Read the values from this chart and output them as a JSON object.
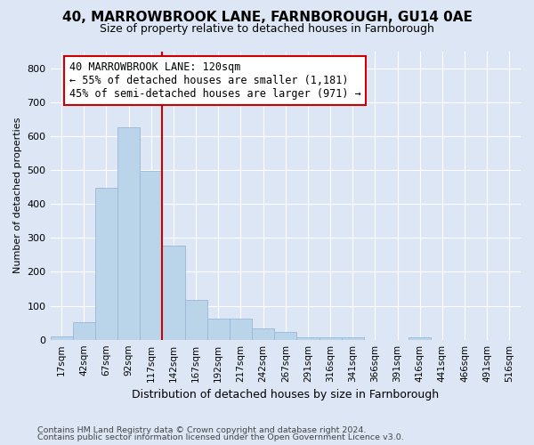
{
  "title1": "40, MARROWBROOK LANE, FARNBOROUGH, GU14 0AE",
  "title2": "Size of property relative to detached houses in Farnborough",
  "xlabel": "Distribution of detached houses by size in Farnborough",
  "ylabel": "Number of detached properties",
  "footnote1": "Contains HM Land Registry data © Crown copyright and database right 2024.",
  "footnote2": "Contains public sector information licensed under the Open Government Licence v3.0.",
  "bar_labels": [
    "17sqm",
    "42sqm",
    "67sqm",
    "92sqm",
    "117sqm",
    "142sqm",
    "167sqm",
    "192sqm",
    "217sqm",
    "242sqm",
    "267sqm",
    "291sqm",
    "316sqm",
    "341sqm",
    "366sqm",
    "391sqm",
    "416sqm",
    "441sqm",
    "466sqm",
    "491sqm",
    "516sqm"
  ],
  "bar_values": [
    10,
    52,
    448,
    625,
    498,
    277,
    117,
    62,
    62,
    33,
    22,
    8,
    6,
    6,
    0,
    0,
    8,
    0,
    0,
    0,
    0
  ],
  "bar_color": "#bad4ea",
  "bar_edge_color": "#9ab8d8",
  "figure_bg_color": "#dce6f5",
  "axes_bg_color": "#dce6f5",
  "grid_color": "#ffffff",
  "ref_line_color": "#cc0000",
  "annotation_text1": "40 MARROWBROOK LANE: 120sqm",
  "annotation_text2": "← 55% of detached houses are smaller (1,181)",
  "annotation_text3": "45% of semi-detached houses are larger (971) →",
  "annotation_box_color": "#ffffff",
  "annotation_box_edge": "#cc0000",
  "ylim": [
    0,
    850
  ],
  "yticks": [
    0,
    100,
    200,
    300,
    400,
    500,
    600,
    700,
    800
  ],
  "ref_bar_index": 4,
  "title1_fontsize": 11,
  "title2_fontsize": 9,
  "ylabel_fontsize": 8,
  "xlabel_fontsize": 9
}
